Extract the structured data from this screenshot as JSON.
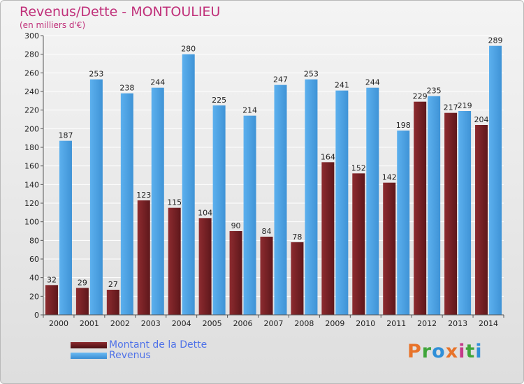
{
  "title": "Revenus/Dette - MONTOULIEU",
  "subtitle": "(en milliers d'€)",
  "logo": {
    "text": "Proxiti",
    "colors": [
      "#e8732a",
      "#3fa53a",
      "#2f8fd8",
      "#e8732a",
      "#c43a8a",
      "#3fa53a",
      "#2f8fd8"
    ]
  },
  "colors": {
    "dette": "#7a2226",
    "revenus": "#4ba0e2",
    "axis_text": "#222222",
    "title": "#c0307a",
    "legend_text": "#4f72e8"
  },
  "chart_data": {
    "type": "bar",
    "categories": [
      "2000",
      "2001",
      "2002",
      "2003",
      "2004",
      "2005",
      "2006",
      "2007",
      "2008",
      "2009",
      "2010",
      "2011",
      "2012",
      "2013",
      "2014"
    ],
    "series": [
      {
        "name": "Montant de la Dette",
        "values": [
          32,
          29,
          27,
          123,
          115,
          104,
          90,
          84,
          78,
          164,
          152,
          142,
          229,
          217,
          204
        ]
      },
      {
        "name": "Revenus",
        "values": [
          187,
          253,
          238,
          244,
          280,
          225,
          214,
          247,
          253,
          241,
          244,
          198,
          235,
          219,
          289
        ]
      }
    ],
    "ylim": [
      0,
      300
    ],
    "yticks": [
      0,
      20,
      40,
      60,
      80,
      100,
      120,
      140,
      160,
      180,
      200,
      220,
      240,
      260,
      280,
      300
    ],
    "grid": true,
    "legend": "bottom-left"
  }
}
